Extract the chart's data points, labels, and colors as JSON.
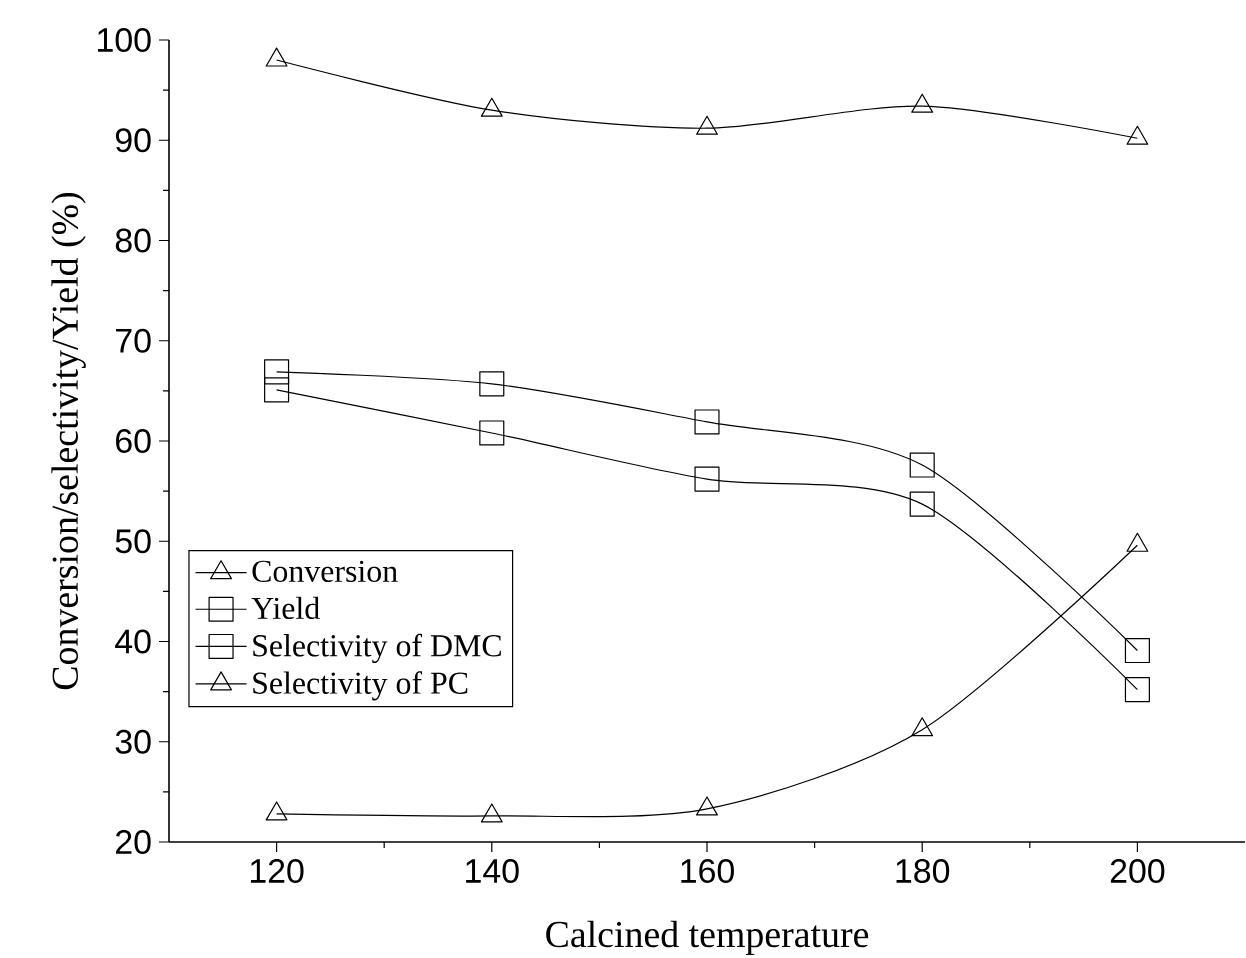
{
  "chart_data": {
    "type": "line",
    "xlabel": "Calcined temperature",
    "ylabel": "Conversion/selectivity/Yield (%)",
    "x": [
      120,
      140,
      160,
      180,
      200
    ],
    "xlim": [
      110,
      210
    ],
    "xticks": [
      120,
      140,
      160,
      180,
      200
    ],
    "ylim": [
      20,
      100
    ],
    "yticks": [
      20,
      30,
      40,
      50,
      60,
      70,
      80,
      90,
      100
    ],
    "grid": false,
    "legend": "bottom left",
    "line_style": "solid",
    "series": [
      {
        "name": "Conversion",
        "color": "#000000",
        "marker": "triangle",
        "values": [
          98.0,
          93.0,
          91.2,
          93.4,
          90.2
        ]
      },
      {
        "name": "Yield",
        "color": "#000000",
        "marker": "square",
        "values": [
          65.1,
          60.8,
          56.2,
          53.7,
          35.2
        ]
      },
      {
        "name": "Selectivity of DMC",
        "color": "#000000",
        "marker": "square",
        "values": [
          66.9,
          65.7,
          61.9,
          57.6,
          39.1
        ]
      },
      {
        "name": "Selectivity of PC",
        "color": "#000000",
        "marker": "triangle",
        "values": [
          22.8,
          22.6,
          23.3,
          31.2,
          49.6
        ]
      }
    ]
  }
}
